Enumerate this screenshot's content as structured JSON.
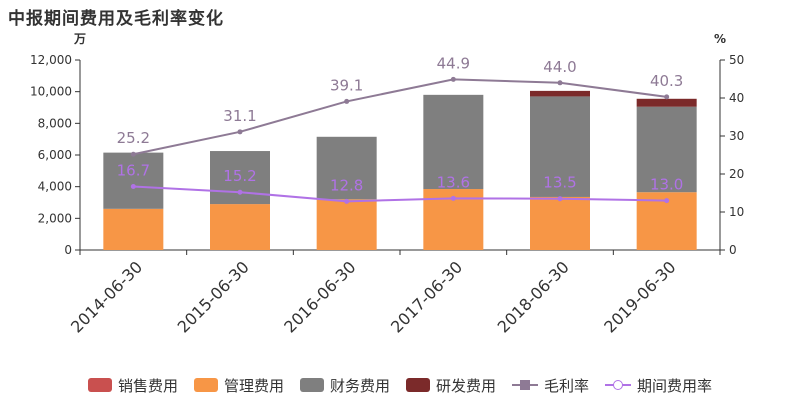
{
  "chart_data": {
    "type": "bar",
    "title": "中报期间费用及毛利率变化",
    "left_unit": "万",
    "right_unit": "%",
    "categories": [
      "2014-06-30",
      "2015-06-30",
      "2016-06-30",
      "2017-06-30",
      "2018-06-30",
      "2019-06-30"
    ],
    "ylim": [
      0,
      12000
    ],
    "yticks": [
      0,
      2000,
      4000,
      6000,
      8000,
      10000,
      12000
    ],
    "y2lim": [
      0,
      50
    ],
    "y2ticks": [
      0,
      10,
      20,
      30,
      40,
      50
    ],
    "stacked": true,
    "series": [
      {
        "name": "销售费用",
        "kind": "bar",
        "color": "#c9504f",
        "values": [
          0,
          0,
          0,
          0,
          0,
          0
        ]
      },
      {
        "name": "管理费用",
        "kind": "bar",
        "color": "#f79646",
        "values": [
          2600,
          2900,
          3200,
          3850,
          3350,
          3650
        ]
      },
      {
        "name": "财务费用",
        "kind": "bar",
        "color": "#7f7f7f",
        "values": [
          3550,
          3350,
          3950,
          5950,
          6350,
          5400
        ]
      },
      {
        "name": "研发费用",
        "kind": "bar",
        "color": "#7b2a2a",
        "values": [
          0,
          0,
          0,
          0,
          350,
          500
        ]
      },
      {
        "name": "毛利率",
        "kind": "line",
        "axis": "right",
        "color": "#8e7a95",
        "marker": "square",
        "values": [
          25.2,
          31.1,
          39.1,
          44.9,
          44.0,
          40.3
        ]
      },
      {
        "name": "期间费用率",
        "kind": "line",
        "axis": "right",
        "color": "#b072e6",
        "marker": "circle",
        "values": [
          16.7,
          15.2,
          12.8,
          13.6,
          13.5,
          13.0
        ]
      }
    ]
  }
}
